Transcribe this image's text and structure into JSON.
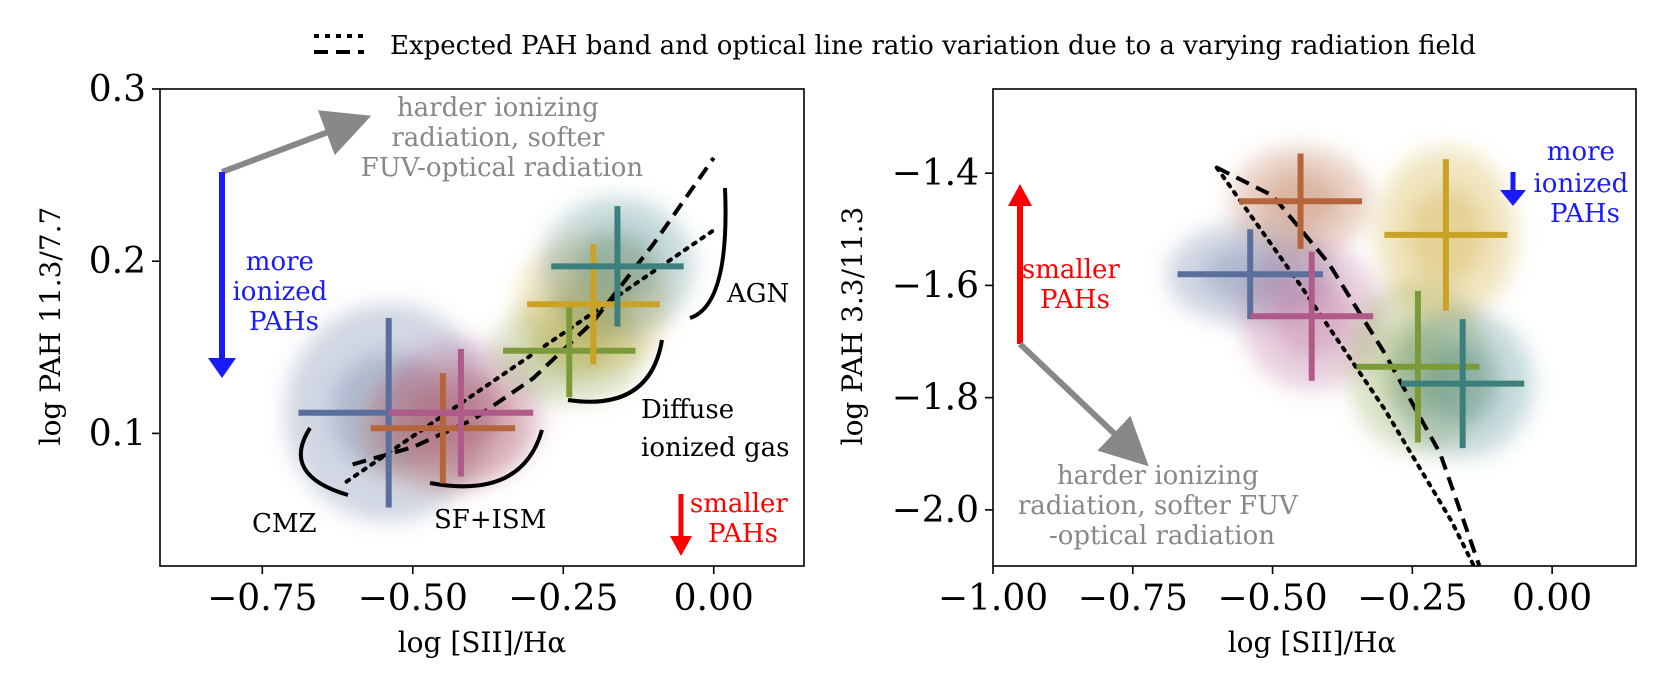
{
  "colors": {
    "mag": "#1a1aff",
    "red": "#ff0000",
    "grey": "#888888",
    "lblue": "#5a6f9c",
    "brown": "#b5653c",
    "purp": "#b05a8a",
    "olive": "#7c9a3a",
    "gold": "#c9a227",
    "teal": "#3d7f7c"
  },
  "legend": {
    "dotted_sample": "dotted",
    "dashed_sample": "dashed",
    "text": "Expected PAH band and optical line ratio variation due to a varying radiation field"
  },
  "chart_data": [
    {
      "type": "scatter",
      "name": "left",
      "xlabel": "log [SII]/Hα",
      "ylabel": "log PAH 11.3/7.7",
      "xlim": [
        -0.92,
        0.15
      ],
      "ylim": [
        0.023,
        0.3
      ],
      "xticks": [
        -0.75,
        -0.5,
        -0.25,
        0.0
      ],
      "xtick_labels": [
        "−0.75",
        "−0.50",
        "−0.25",
        "0.00"
      ],
      "yticks": [
        0.1,
        0.2,
        0.3
      ],
      "ytick_labels": [
        "0.1",
        "0.2",
        "0.3"
      ],
      "points": [
        {
          "x": -0.54,
          "y": 0.112,
          "xerr": 0.15,
          "yerr": 0.055,
          "c": "lblue"
        },
        {
          "x": -0.45,
          "y": 0.103,
          "xerr": 0.12,
          "yerr": 0.032,
          "c": "brown"
        },
        {
          "x": -0.42,
          "y": 0.112,
          "xerr": 0.12,
          "yerr": 0.037,
          "c": "purp"
        },
        {
          "x": -0.24,
          "y": 0.148,
          "xerr": 0.11,
          "yerr": 0.027,
          "c": "olive"
        },
        {
          "x": -0.2,
          "y": 0.175,
          "xerr": 0.11,
          "yerr": 0.035,
          "c": "gold"
        },
        {
          "x": -0.16,
          "y": 0.197,
          "xerr": 0.11,
          "yerr": 0.035,
          "c": "teal"
        }
      ],
      "dashed": [
        [
          -0.6,
          0.082
        ],
        [
          -0.5,
          0.092
        ],
        [
          -0.4,
          0.108
        ],
        [
          -0.3,
          0.132
        ],
        [
          -0.2,
          0.165
        ],
        [
          -0.1,
          0.21
        ],
        [
          0.0,
          0.26
        ]
      ],
      "dotted": [
        [
          -0.61,
          0.072
        ],
        [
          0.0,
          0.218
        ]
      ],
      "annotations": {
        "harder": [
          "harder ionizing",
          "radiation, softer",
          "FUV-optical radiation"
        ],
        "more_ionized": [
          "more",
          "ionized",
          "PAHs"
        ],
        "smaller": [
          "smaller",
          "PAHs"
        ],
        "agn": "AGN",
        "diffuse": [
          "Diffuse",
          "ionized gas"
        ],
        "cmz": "CMZ",
        "sfism": "SF+ISM"
      }
    },
    {
      "type": "scatter",
      "name": "right",
      "xlabel": "log [SII]/Hα",
      "ylabel": "log PAH 3.3/11.3",
      "xlim": [
        -1.0,
        0.15
      ],
      "ylim": [
        -2.1,
        -1.25
      ],
      "xticks": [
        -1.0,
        -0.75,
        -0.5,
        -0.25,
        0.0
      ],
      "xtick_labels": [
        "−1.00",
        "−0.75",
        "−0.50",
        "−0.25",
        "0.00"
      ],
      "yticks": [
        -2.0,
        -1.8,
        -1.6,
        -1.4
      ],
      "ytick_labels": [
        "−2.0",
        "−1.8",
        "−1.6",
        "−1.4"
      ],
      "points": [
        {
          "x": -0.54,
          "y": -1.58,
          "xerr": 0.13,
          "yerr": 0.08,
          "c": "lblue"
        },
        {
          "x": -0.45,
          "y": -1.45,
          "xerr": 0.11,
          "yerr": 0.085,
          "c": "brown"
        },
        {
          "x": -0.43,
          "y": -1.655,
          "xerr": 0.11,
          "yerr": 0.115,
          "c": "purp"
        },
        {
          "x": -0.24,
          "y": -1.745,
          "xerr": 0.11,
          "yerr": 0.135,
          "c": "olive"
        },
        {
          "x": -0.19,
          "y": -1.51,
          "xerr": 0.11,
          "yerr": 0.135,
          "c": "gold"
        },
        {
          "x": -0.16,
          "y": -1.775,
          "xerr": 0.11,
          "yerr": 0.115,
          "c": "teal"
        }
      ],
      "dashed": [
        [
          -0.6,
          -1.39
        ],
        [
          -0.5,
          -1.44
        ],
        [
          -0.4,
          -1.56
        ],
        [
          -0.3,
          -1.72
        ],
        [
          -0.2,
          -1.9
        ],
        [
          -0.13,
          -2.1
        ]
      ],
      "dotted": [
        [
          -0.6,
          -1.39
        ],
        [
          -0.45,
          -1.6
        ],
        [
          -0.3,
          -1.82
        ],
        [
          -0.18,
          -2.02
        ],
        [
          -0.14,
          -2.1
        ]
      ],
      "annotations": {
        "harder": [
          "harder ionizing",
          "radiation, softer FUV",
          "-optical radiation"
        ],
        "more_ionized": [
          "more",
          "ionized",
          "PAHs"
        ],
        "smaller": [
          "smaller",
          "PAHs"
        ]
      }
    }
  ]
}
